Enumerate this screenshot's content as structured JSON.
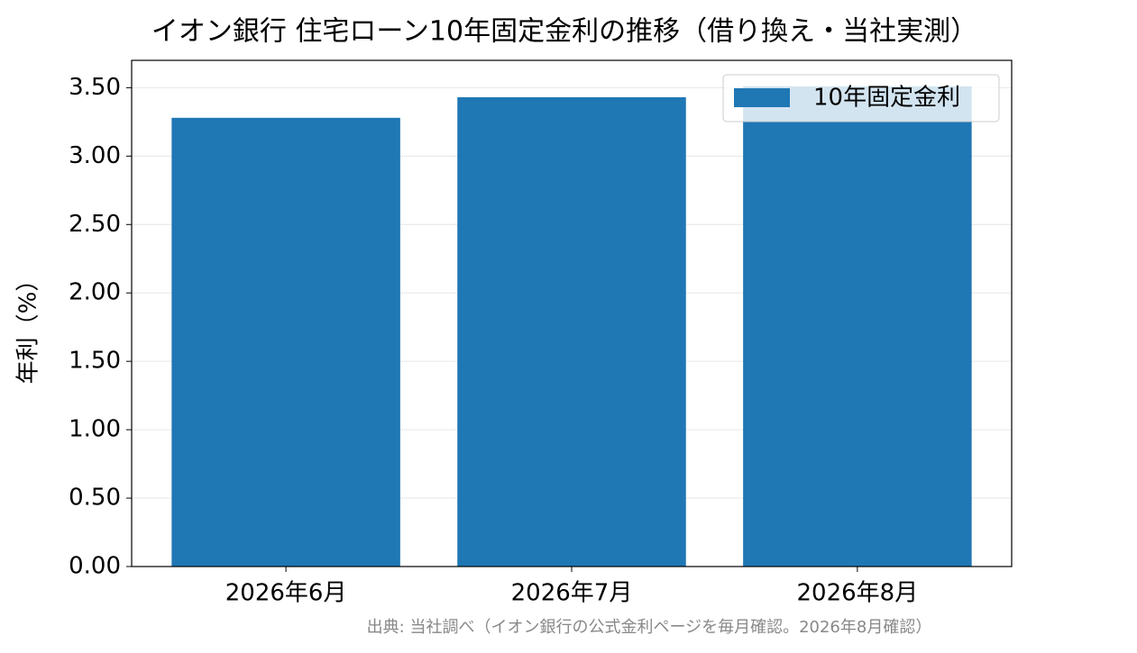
{
  "chart_data": {
    "type": "bar",
    "title": "イオン銀行 住宅ローン10年固定金利の推移（借り換え・当社実測）",
    "y_label": "年利（%）",
    "categories": [
      "2026年6月",
      "2026年7月",
      "2026年8月"
    ],
    "series": [
      {
        "name": "10年固定金利",
        "color": "#1f77b4",
        "values": [
          3.28,
          3.43,
          3.51
        ]
      }
    ],
    "ylim": [
      0,
      3.7
    ],
    "yticks": [
      {
        "value": 0,
        "label": "0.00"
      },
      {
        "value": 0.5,
        "label": "0.50"
      },
      {
        "value": 1,
        "label": "1.00"
      },
      {
        "value": 1.5,
        "label": "1.50"
      },
      {
        "value": 2,
        "label": "2.00"
      },
      {
        "value": 2.5,
        "label": "2.50"
      },
      {
        "value": 3,
        "label": "3.00"
      },
      {
        "value": 3.5,
        "label": "3.50"
      }
    ],
    "grid": true,
    "legend": "upper right",
    "source": "出典: 当社調べ（イオン銀行の公式金利ページを毎月確認。2026年8月確認）"
  }
}
